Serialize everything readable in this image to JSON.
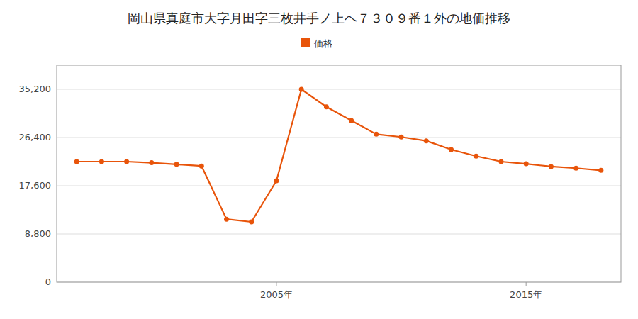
{
  "chart_data": {
    "type": "line",
    "title": "岡山県真庭市大字月田字三枚井手ノ上ヘ７３０９番１外の地価推移",
    "x": [
      1997,
      1998,
      1999,
      2000,
      2001,
      2002,
      2003,
      2004,
      2005,
      2006,
      2007,
      2008,
      2009,
      2010,
      2011,
      2012,
      2013,
      2014,
      2015,
      2016,
      2017,
      2018
    ],
    "series": [
      {
        "name": "価格",
        "color": "#e8540a",
        "values": [
          22000,
          22000,
          22000,
          21800,
          21500,
          21200,
          11500,
          11000,
          18500,
          35200,
          32000,
          29500,
          27000,
          26500,
          25800,
          24200,
          23000,
          22000,
          21600,
          21100,
          20800,
          20400
        ]
      }
    ],
    "xlim": [
      1996.2,
      2018.8
    ],
    "xticks": [
      {
        "value": 2005,
        "label": "2005年"
      },
      {
        "value": 2015,
        "label": "2015年"
      }
    ],
    "ylim": [
      0,
      39600
    ],
    "yticks": [
      0,
      {
        "value": 8800,
        "label": "8,800"
      },
      {
        "value": 17600,
        "label": "17,600"
      },
      {
        "value": 26400,
        "label": "26,400"
      },
      {
        "value": 35200,
        "label": "35,200"
      }
    ],
    "grid": true,
    "legend": "top",
    "marker": "circle"
  }
}
